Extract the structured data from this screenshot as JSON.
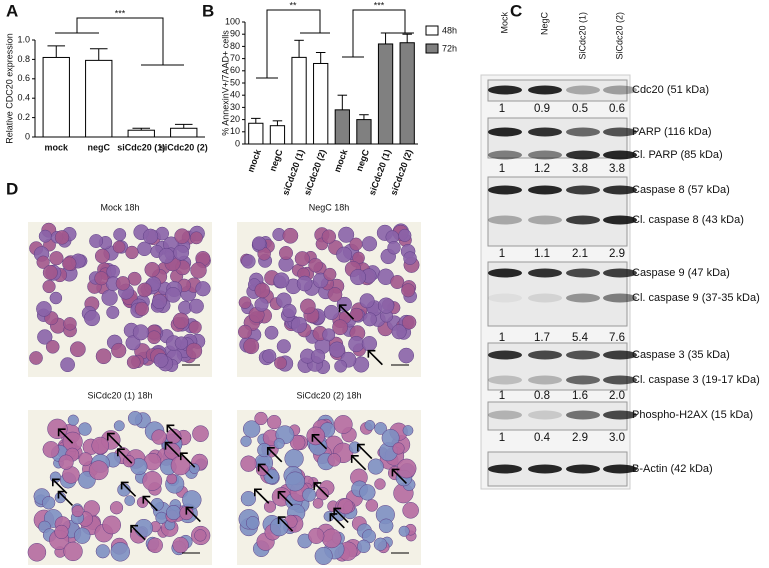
{
  "panel_labels": [
    "A",
    "B",
    "C",
    "D"
  ],
  "chart_data": [
    {
      "type": "bar",
      "y_label": "Relative CDC20 expression",
      "categories": [
        "mock",
        "negC",
        "siCdc20 (1)",
        "siCdc20 (2)"
      ],
      "values": [
        0.82,
        0.79,
        0.07,
        0.09
      ],
      "errors": [
        0.12,
        0.12,
        0.02,
        0.04
      ],
      "color": "#ffffff",
      "ylim": [
        0,
        1
      ],
      "yticks": [
        0,
        0.2,
        0.4,
        0.6,
        0.8,
        {
          "value": 1,
          "label": "1.0"
        }
      ],
      "annotations": [
        "***"
      ]
    },
    {
      "type": "bar",
      "y_label": "% AnnexinV+/7AAD+ cells",
      "categories": [
        "mock",
        "negC",
        "siCdc20 (1)",
        "siCdc20 (2)",
        "mock",
        "negC",
        "siCdc20 (1)",
        "siCdc20 (2)"
      ],
      "series": [
        {
          "name": "48h",
          "color": "#ffffff",
          "values": [
            17,
            15,
            71,
            66,
            null,
            null,
            null,
            null
          ],
          "errors": [
            4,
            4,
            14,
            9,
            null,
            null,
            null,
            null
          ]
        },
        {
          "name": "72h",
          "color": "#808080",
          "values": [
            null,
            null,
            null,
            null,
            28,
            20,
            82,
            83
          ],
          "errors": [
            null,
            null,
            null,
            null,
            12,
            4,
            9,
            7
          ]
        }
      ],
      "ylim": [
        0,
        100
      ],
      "yticks": [
        0,
        10,
        20,
        30,
        40,
        50,
        60,
        70,
        80,
        90,
        100
      ],
      "annotations": [
        "**",
        "***"
      ]
    }
  ],
  "blot": {
    "lanes": [
      "Mock",
      "NegC",
      "SiCdc20 (1)",
      "SiCdc20 (2)"
    ],
    "panels": [
      {
        "labels": [
          "Cdc20 (51 kDa)"
        ],
        "quantification": [
          "1",
          "0.9",
          "0.5",
          "0.6"
        ]
      },
      {
        "labels": [
          "PARP (116 kDa)",
          "Cl. PARP (85 kDa)"
        ],
        "quantification": [
          "1",
          "1.2",
          "3.8",
          "3.8"
        ]
      },
      {
        "labels": [
          "Caspase 8 (57 kDa)",
          "Cl. caspase 8 (43 kDa)"
        ],
        "quantification": [
          "1",
          "1.1",
          "2.1",
          "2.9"
        ]
      },
      {
        "labels": [
          "Caspase 9 (47 kDa)",
          "Cl. caspase 9 (37-35 kDa)"
        ],
        "quantification": [
          "1",
          "1.7",
          "5.4",
          "7.6"
        ]
      },
      {
        "labels": [
          "Caspase 3 (35 kDa)",
          "Cl. caspase 3 (19-17 kDa)"
        ],
        "quantification": [
          "1",
          "0.8",
          "1.6",
          "2.0"
        ]
      },
      {
        "labels": [
          "Phospho-H2AX (15 kDa)"
        ],
        "quantification": [
          "1",
          "0.4",
          "2.9",
          "3.0"
        ]
      },
      {
        "labels": [
          "B-Actin (42 kDa)"
        ]
      }
    ]
  },
  "micrographs": [
    {
      "title": "Mock 18h"
    },
    {
      "title": "NegC 18h"
    },
    {
      "title": "SiCdc20 (1) 18h"
    },
    {
      "title": "SiCdc20 (2) 18h"
    }
  ]
}
